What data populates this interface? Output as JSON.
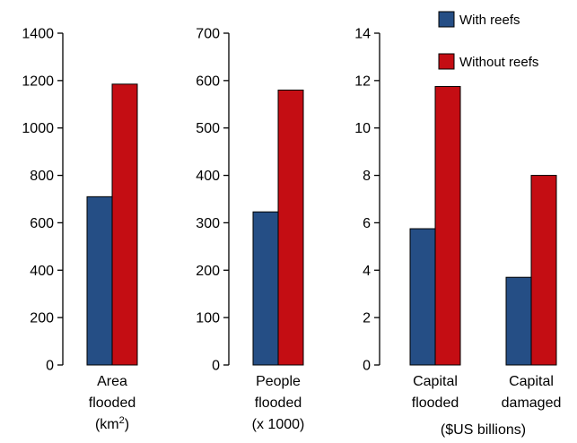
{
  "chart_data": [
    {
      "type": "bar",
      "ylim": [
        0,
        1400
      ],
      "yticks": [
        0,
        200,
        400,
        600,
        800,
        1000,
        1200,
        1400
      ],
      "categories": [
        {
          "lines": [
            "Area",
            "flooded"
          ],
          "unit_line": {
            "base": "(km",
            "sup": "2",
            "end": ")"
          }
        }
      ],
      "series": [
        {
          "name": "With reefs",
          "values": [
            710
          ]
        },
        {
          "name": "Without reefs",
          "values": [
            1185
          ]
        }
      ]
    },
    {
      "type": "bar",
      "ylim": [
        0,
        700
      ],
      "yticks": [
        0,
        100,
        200,
        300,
        400,
        500,
        600,
        700
      ],
      "categories": [
        {
          "lines": [
            "People",
            "flooded",
            "(x 1000)"
          ]
        }
      ],
      "series": [
        {
          "name": "With reefs",
          "values": [
            323
          ]
        },
        {
          "name": "Without reefs",
          "values": [
            580
          ]
        }
      ]
    },
    {
      "type": "bar",
      "ylim": [
        0,
        14
      ],
      "yticks": [
        0,
        2,
        4,
        6,
        8,
        10,
        12,
        14
      ],
      "categories": [
        {
          "lines": [
            "Capital",
            "flooded"
          ]
        },
        {
          "lines": [
            "Capital",
            "damaged"
          ]
        }
      ],
      "group_label": "($US billions)",
      "series": [
        {
          "name": "With reefs",
          "values": [
            5.75,
            3.7
          ]
        },
        {
          "name": "Without reefs",
          "values": [
            11.75,
            8.0
          ]
        }
      ]
    }
  ],
  "legend": {
    "placement": "top-right",
    "items": [
      {
        "label": "With reefs",
        "color": "#254e85"
      },
      {
        "label": "Without reefs",
        "color": "#c40d13"
      }
    ]
  },
  "colors": {
    "with_reefs": "#254e85",
    "without_reefs": "#c40d13"
  }
}
